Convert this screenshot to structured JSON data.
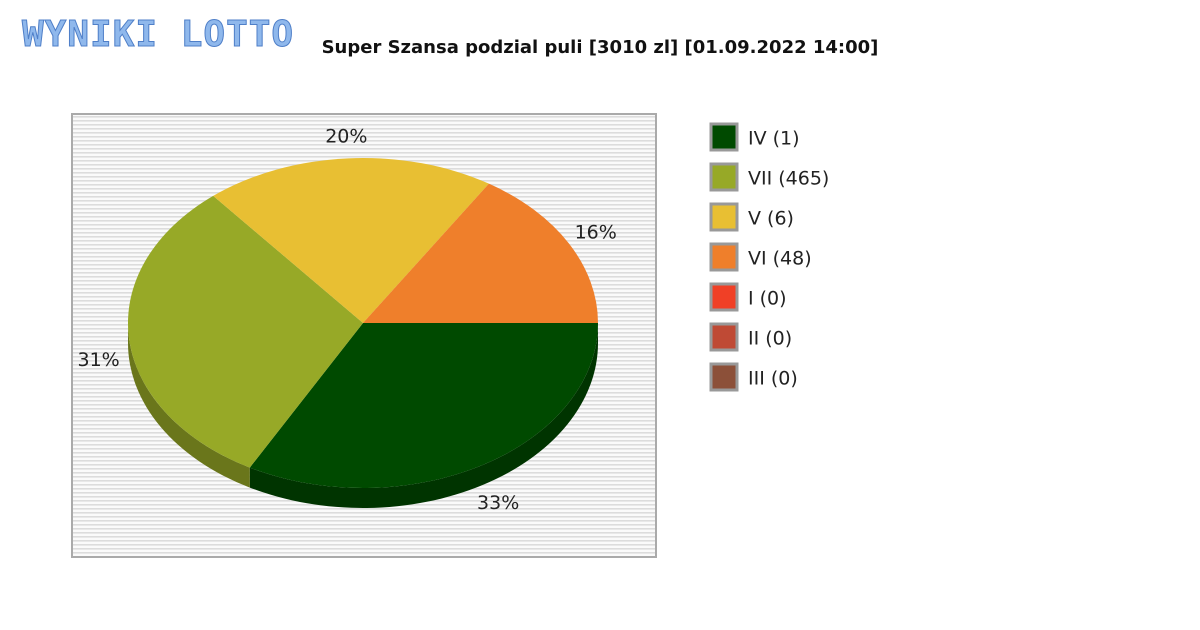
{
  "logo": "WYNIKI LOTTO",
  "chart_data": {
    "type": "pie",
    "title": "Super Szansa podzial puli [3010 zl] [01.09.2022 14:00]",
    "categories": [
      "IV (1)",
      "VII (465)",
      "V (6)",
      "VI (48)",
      "I (0)",
      "II (0)",
      "III (0)"
    ],
    "values": [
      33,
      31,
      20,
      16,
      0,
      0,
      0
    ],
    "value_labels": [
      "33%",
      "31%",
      "20%",
      "16%",
      null,
      null,
      null
    ],
    "colors": [
      "#004a00",
      "#97a927",
      "#e8bf33",
      "#ef7f2b",
      "#f04026",
      "#bf4a35",
      "#8c5039"
    ],
    "legend": "right"
  }
}
